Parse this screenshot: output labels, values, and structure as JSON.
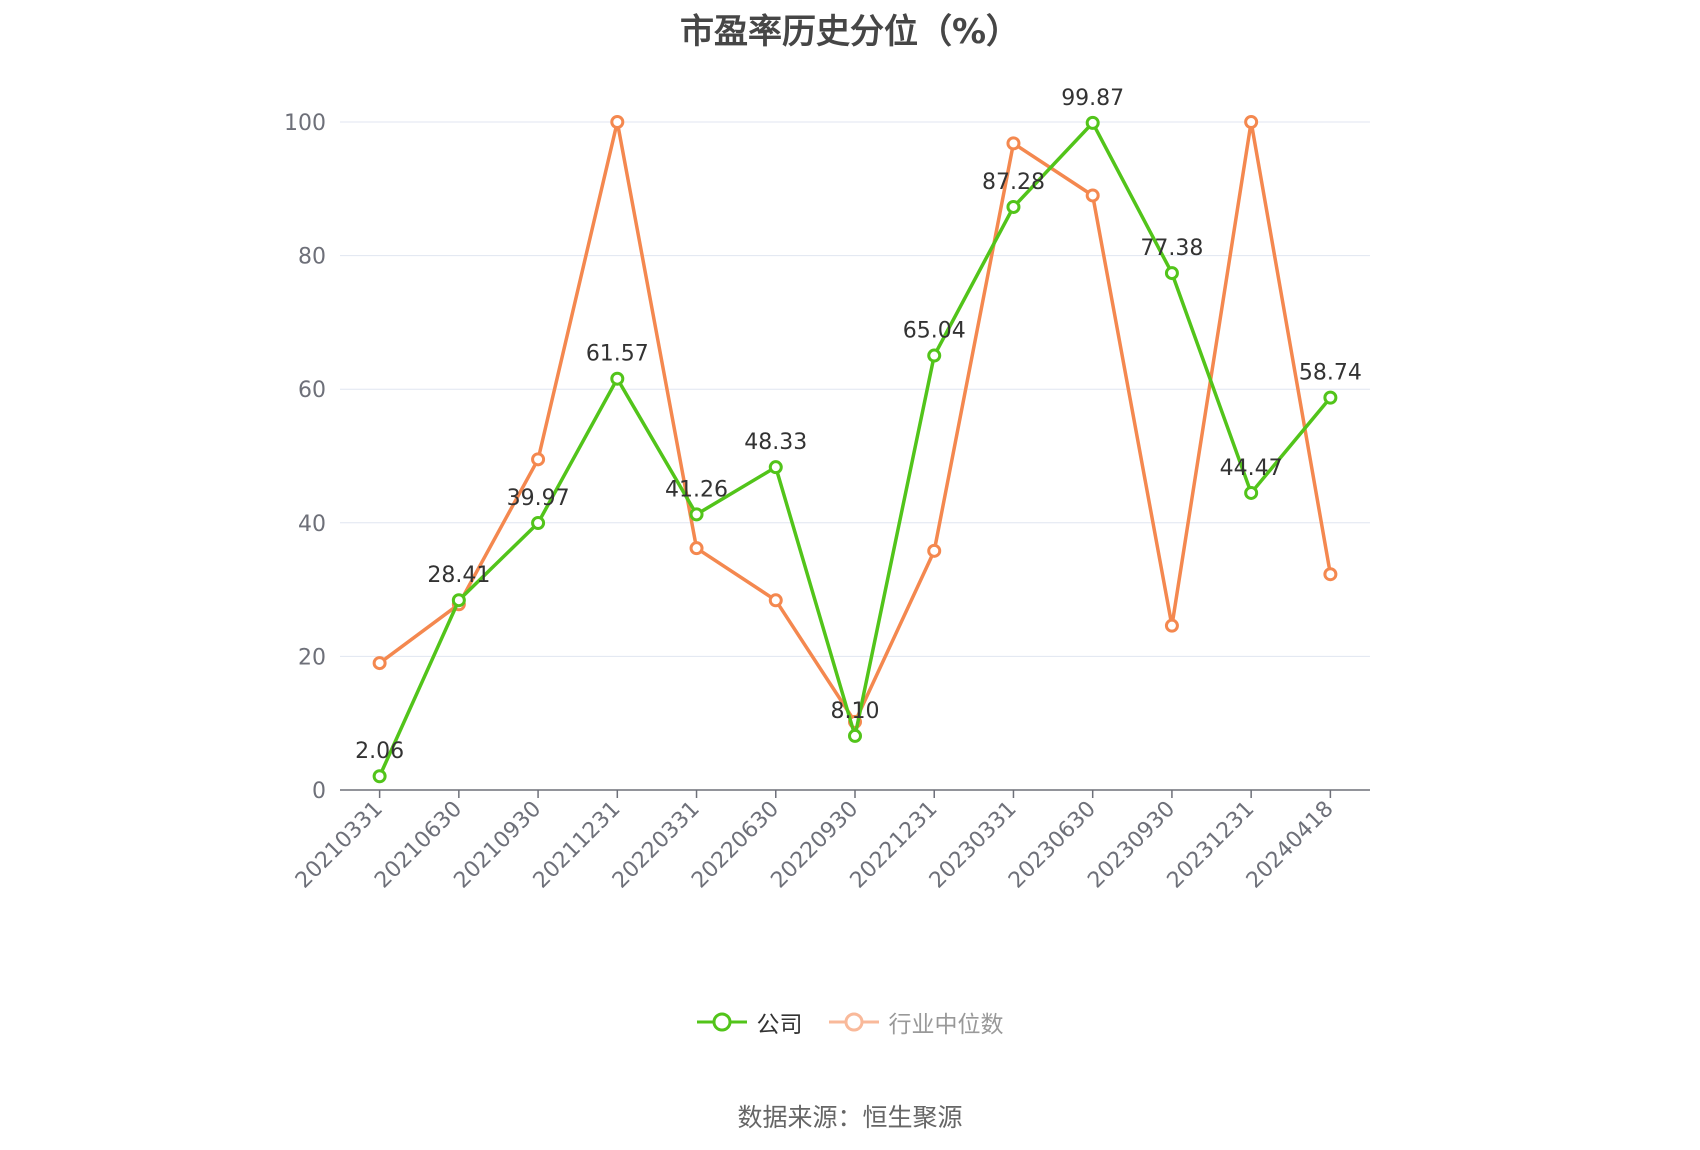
{
  "chart_data": {
    "type": "line",
    "title": "市盈率历史分位（%）",
    "xlabel": "",
    "ylabel": "",
    "ylim": [
      0,
      100
    ],
    "y_ticks": [
      0,
      20,
      40,
      60,
      80,
      100
    ],
    "grid": true,
    "legend_position": "bottom-center",
    "x": [
      "20210331",
      "20210630",
      "20210930",
      "20211231",
      "20220331",
      "20220630",
      "20220930",
      "20221231",
      "20230331",
      "20230630",
      "20230930",
      "20231231",
      "20240418"
    ],
    "series": [
      {
        "name": "公司",
        "color": "#52c41a",
        "show_labels": true,
        "values": [
          2.06,
          28.41,
          39.97,
          61.57,
          41.26,
          48.33,
          8.1,
          65.04,
          87.28,
          99.87,
          77.38,
          44.47,
          58.74
        ],
        "labels": [
          "2.06",
          "28.41",
          "39.97",
          "61.57",
          "41.26",
          "48.33",
          "8.10",
          "65.04",
          "87.28",
          "99.87",
          "77.38",
          "44.47",
          "58.74"
        ]
      },
      {
        "name": "行业中位数",
        "color": "#f4884f",
        "show_labels": false,
        "values": [
          19.0,
          27.8,
          49.5,
          100.0,
          36.2,
          28.4,
          10.2,
          35.8,
          96.8,
          89.0,
          24.6,
          100.0,
          32.3
        ]
      }
    ]
  },
  "legend": {
    "company_label": "公司",
    "industry_label": "行业中位数",
    "company_color": "#52c41a",
    "industry_color": "#f9b99a"
  },
  "footer": {
    "source": "数据来源：恒生聚源"
  },
  "colors": {
    "grid": "#e0e6f1",
    "axis": "#6e7079"
  }
}
